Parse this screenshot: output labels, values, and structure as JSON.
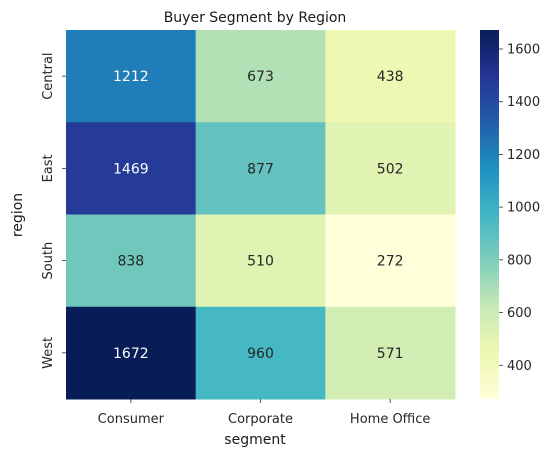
{
  "chart_data": {
    "type": "heatmap",
    "title": "Buyer Segment by Region",
    "xlabel": "segment",
    "ylabel": "region",
    "x_categories": [
      "Consumer",
      "Corporate",
      "Home Office"
    ],
    "y_categories": [
      "Central",
      "East",
      "South",
      "West"
    ],
    "values": [
      [
        1212,
        673,
        438
      ],
      [
        1469,
        877,
        502
      ],
      [
        838,
        510,
        272
      ],
      [
        1672,
        960,
        571
      ]
    ],
    "colormap": "YlGnBu",
    "color_range": [
      272,
      1672
    ],
    "colorbar_ticks": [
      400,
      600,
      800,
      1000,
      1200,
      1400,
      1600
    ],
    "annotations_shown": true,
    "grid": false
  }
}
